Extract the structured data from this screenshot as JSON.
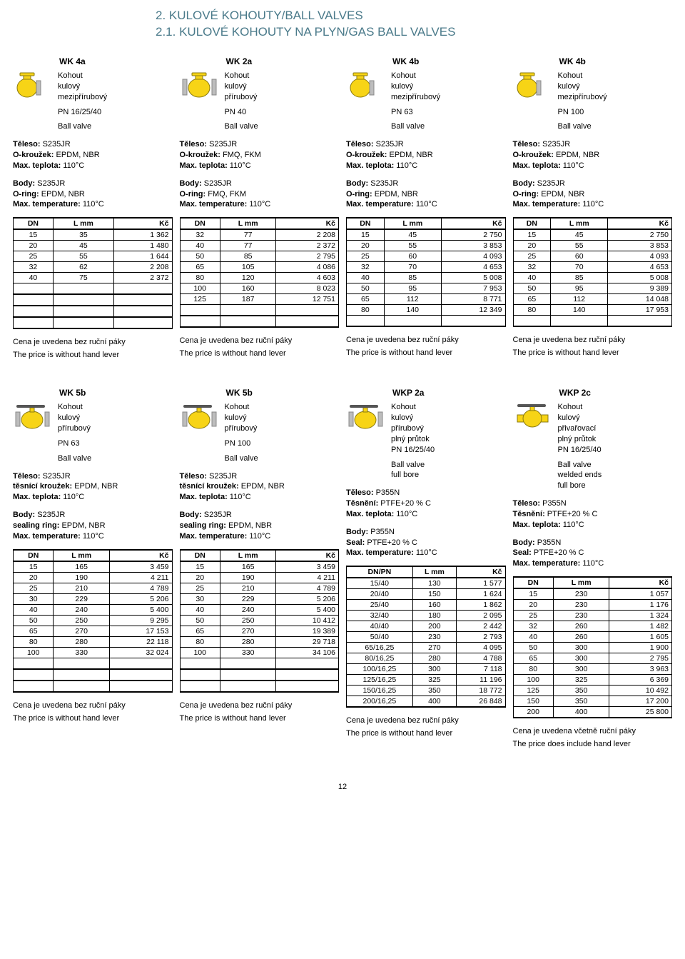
{
  "titles": {
    "h1": "2. KULOVÉ KOHOUTY/BALL VALVES",
    "h2": "2.1. KULOVÉ KOHOUTY NA PLYN/GAS BALL VALVES"
  },
  "page": "12",
  "section1": {
    "cols": [
      {
        "model": "WK 4a",
        "desc": [
          "Kohout",
          "kulový",
          "mezipřírubový",
          "",
          "PN 16/25/40",
          "",
          "Ball valve"
        ],
        "specs_cz": [
          "Těleso: S235JR",
          "O-kroužek: EPDM, NBR",
          "Max. teplota: 110°C"
        ],
        "specs_en": [
          "Body: S235JR",
          "O-ring: EPDM, NBR",
          "Max. temperature: 110°C"
        ],
        "headers": [
          "DN",
          "L mm",
          "Kč"
        ],
        "rows": [
          [
            "15",
            "35",
            "1 362"
          ],
          [
            "20",
            "45",
            "1 480"
          ],
          [
            "25",
            "55",
            "1 644"
          ],
          [
            "32",
            "62",
            "2 208"
          ],
          [
            "40",
            "75",
            "2 372"
          ]
        ],
        "pad_rows": 4,
        "note_cz": "Cena je uvedena bez ruční páky",
        "note_en": "The price is without hand lever"
      },
      {
        "model": "WK 2a",
        "desc": [
          "Kohout",
          "kulový",
          "přírubový",
          "",
          "PN 40",
          "",
          "Ball valve"
        ],
        "specs_cz": [
          "Těleso: S235JR",
          "O-kroužek: FMQ, FKM",
          "Max. teplota: 110°C"
        ],
        "specs_en": [
          "Body: S235JR",
          "O-ring: FMQ, FKM",
          "Max. temperature: 110°C"
        ],
        "headers": [
          "DN",
          "L mm",
          "Kč"
        ],
        "rows": [
          [
            "32",
            "77",
            "2 208"
          ],
          [
            "40",
            "77",
            "2 372"
          ],
          [
            "50",
            "85",
            "2 795"
          ],
          [
            "65",
            "105",
            "4 086"
          ],
          [
            "80",
            "120",
            "4 603"
          ],
          [
            "100",
            "160",
            "8 023"
          ],
          [
            "125",
            "187",
            "12 751"
          ]
        ],
        "pad_rows": 2,
        "note_cz": "Cena je uvedena bez ruční páky",
        "note_en": "The price is without hand lever"
      },
      {
        "model": "WK 4b",
        "desc": [
          "Kohout",
          "kulový",
          "mezipřírubový",
          "",
          "PN 63",
          "",
          "Ball valve"
        ],
        "specs_cz": [
          "Těleso: S235JR",
          "O-kroužek: EPDM, NBR",
          "Max. teplota: 110°C"
        ],
        "specs_en": [
          "Body: S235JR",
          "O-ring: EPDM, NBR",
          "Max. temperature: 110°C"
        ],
        "headers": [
          "DN",
          "L mm",
          "Kč"
        ],
        "rows": [
          [
            "15",
            "45",
            "2 750"
          ],
          [
            "20",
            "55",
            "3 853"
          ],
          [
            "25",
            "60",
            "4 093"
          ],
          [
            "32",
            "70",
            "4 653"
          ],
          [
            "40",
            "85",
            "5 008"
          ],
          [
            "50",
            "95",
            "7 953"
          ],
          [
            "65",
            "112",
            "8 771"
          ],
          [
            "80",
            "140",
            "12 349"
          ]
        ],
        "pad_rows": 1,
        "note_cz": "Cena je uvedena bez ruční páky",
        "note_en": "The price is without hand lever"
      },
      {
        "model": "WK 4b",
        "desc": [
          "Kohout",
          "kulový",
          "mezipřírubový",
          "",
          "PN 100",
          "",
          "Ball valve"
        ],
        "specs_cz": [
          "Těleso: S235JR",
          "O-kroužek: EPDM, NBR",
          "Max. teplota: 110°C"
        ],
        "specs_en": [
          "Body: S235JR",
          "O-ring: EPDM, NBR",
          "Max. temperature: 110°C"
        ],
        "headers": [
          "DN",
          "L mm",
          "Kč"
        ],
        "rows": [
          [
            "15",
            "45",
            "2 750"
          ],
          [
            "20",
            "55",
            "3 853"
          ],
          [
            "25",
            "60",
            "4 093"
          ],
          [
            "32",
            "70",
            "4 653"
          ],
          [
            "40",
            "85",
            "5 008"
          ],
          [
            "50",
            "95",
            "9 389"
          ],
          [
            "65",
            "112",
            "14 048"
          ],
          [
            "80",
            "140",
            "17 953"
          ]
        ],
        "pad_rows": 1,
        "note_cz": "Cena je uvedena bez ruční páky",
        "note_en": "The price is without hand lever"
      }
    ]
  },
  "section2": {
    "cols": [
      {
        "model": "WK 5b",
        "desc": [
          "Kohout",
          "kulový",
          "přírubový",
          "",
          "PN 63",
          "",
          "Ball valve"
        ],
        "specs_cz": [
          "Těleso: S235JR",
          "těsnící kroužek: EPDM, NBR",
          "Max. teplota: 110°C"
        ],
        "specs_en": [
          "Body: S235JR",
          "sealing ring: EPDM, NBR",
          "Max. temperature: 110°C"
        ],
        "headers": [
          "DN",
          "L mm",
          "Kč"
        ],
        "rows": [
          [
            "15",
            "165",
            "3 459"
          ],
          [
            "20",
            "190",
            "4 211"
          ],
          [
            "25",
            "210",
            "4 789"
          ],
          [
            "30",
            "229",
            "5 206"
          ],
          [
            "40",
            "240",
            "5 400"
          ],
          [
            "50",
            "250",
            "9 295"
          ],
          [
            "65",
            "270",
            "17 153"
          ],
          [
            "80",
            "280",
            "22 118"
          ],
          [
            "100",
            "330",
            "32 024"
          ]
        ],
        "pad_rows": 3,
        "note_cz": "Cena je uvedena bez ruční páky",
        "note_en": "The price is without hand lever"
      },
      {
        "model": "WK 5b",
        "desc": [
          "Kohout",
          "kulový",
          "přírubový",
          "",
          "PN 100",
          "",
          "Ball valve"
        ],
        "specs_cz": [
          "Těleso: S235JR",
          "těsnící kroužek: EPDM, NBR",
          "Max. teplota: 110°C"
        ],
        "specs_en": [
          "Body: S235JR",
          "sealing ring: EPDM, NBR",
          "Max. temperature: 110°C"
        ],
        "headers": [
          "DN",
          "L mm",
          "Kč"
        ],
        "rows": [
          [
            "15",
            "165",
            "3 459"
          ],
          [
            "20",
            "190",
            "4 211"
          ],
          [
            "25",
            "210",
            "4 789"
          ],
          [
            "30",
            "229",
            "5 206"
          ],
          [
            "40",
            "240",
            "5 400"
          ],
          [
            "50",
            "250",
            "10 412"
          ],
          [
            "65",
            "270",
            "19 389"
          ],
          [
            "80",
            "280",
            "29 718"
          ],
          [
            "100",
            "330",
            "34 106"
          ]
        ],
        "pad_rows": 3,
        "note_cz": "Cena je uvedena bez ruční páky",
        "note_en": "The price is without hand lever"
      },
      {
        "model": "WKP 2a",
        "desc": [
          "Kohout",
          "kulový",
          "přírubový",
          "plný průtok",
          "PN 16/25/40",
          "",
          "Ball valve",
          "full bore"
        ],
        "specs_cz": [
          "Těleso: P355N",
          "Těsnění: PTFE+20 % C",
          "Max. teplota: 110°C"
        ],
        "specs_en": [
          "Body: P355N",
          "Seal: PTFE+20 % C",
          "Max. temperature: 110°C"
        ],
        "headers": [
          "DN/PN",
          "L mm",
          "Kč"
        ],
        "rows": [
          [
            "15/40",
            "130",
            "1 577"
          ],
          [
            "20/40",
            "150",
            "1 624"
          ],
          [
            "25/40",
            "160",
            "1 862"
          ],
          [
            "32/40",
            "180",
            "2 095"
          ],
          [
            "40/40",
            "200",
            "2 442"
          ],
          [
            "50/40",
            "230",
            "2 793"
          ],
          [
            "65/16,25",
            "270",
            "4 095"
          ],
          [
            "80/16,25",
            "280",
            "4 788"
          ],
          [
            "100/16,25",
            "300",
            "7 118"
          ],
          [
            "125/16,25",
            "325",
            "11 196"
          ],
          [
            "150/16,25",
            "350",
            "18 772"
          ],
          [
            "200/16,25",
            "400",
            "26 848"
          ]
        ],
        "pad_rows": 0,
        "note_cz": "Cena je uvedena bez ruční páky",
        "note_en": "The price is without hand lever"
      },
      {
        "model": "WKP 2c",
        "desc": [
          "Kohout",
          "kulový",
          "přivařovací",
          "plný průtok",
          "PN 16/25/40",
          "",
          "Ball valve",
          "welded ends",
          "full bore"
        ],
        "specs_cz": [
          "Těleso: P355N",
          "Těsnění: PTFE+20 % C",
          "Max. teplota: 110°C"
        ],
        "specs_en": [
          "Body: P355N",
          "Seal: PTFE+20 % C",
          "Max. temperature: 110°C"
        ],
        "headers": [
          "DN",
          "L mm",
          "Kč"
        ],
        "rows": [
          [
            "15",
            "230",
            "1 057"
          ],
          [
            "20",
            "230",
            "1 176"
          ],
          [
            "25",
            "230",
            "1 324"
          ],
          [
            "32",
            "260",
            "1 482"
          ],
          [
            "40",
            "260",
            "1 605"
          ],
          [
            "50",
            "300",
            "1 900"
          ],
          [
            "65",
            "300",
            "2 795"
          ],
          [
            "80",
            "300",
            "3 963"
          ],
          [
            "100",
            "325",
            "6 369"
          ],
          [
            "125",
            "350",
            "10 492"
          ],
          [
            "150",
            "350",
            "17 200"
          ],
          [
            "200",
            "400",
            "25 800"
          ]
        ],
        "pad_rows": 0,
        "note_cz": "Cena je uvedena včetně ruční páky",
        "note_en": "The price does include hand lever"
      }
    ]
  },
  "icons": {
    "valve_yellow": "#f7d416",
    "valve_stroke": "#8a7a10",
    "flange_gray": "#bdbdbd"
  }
}
